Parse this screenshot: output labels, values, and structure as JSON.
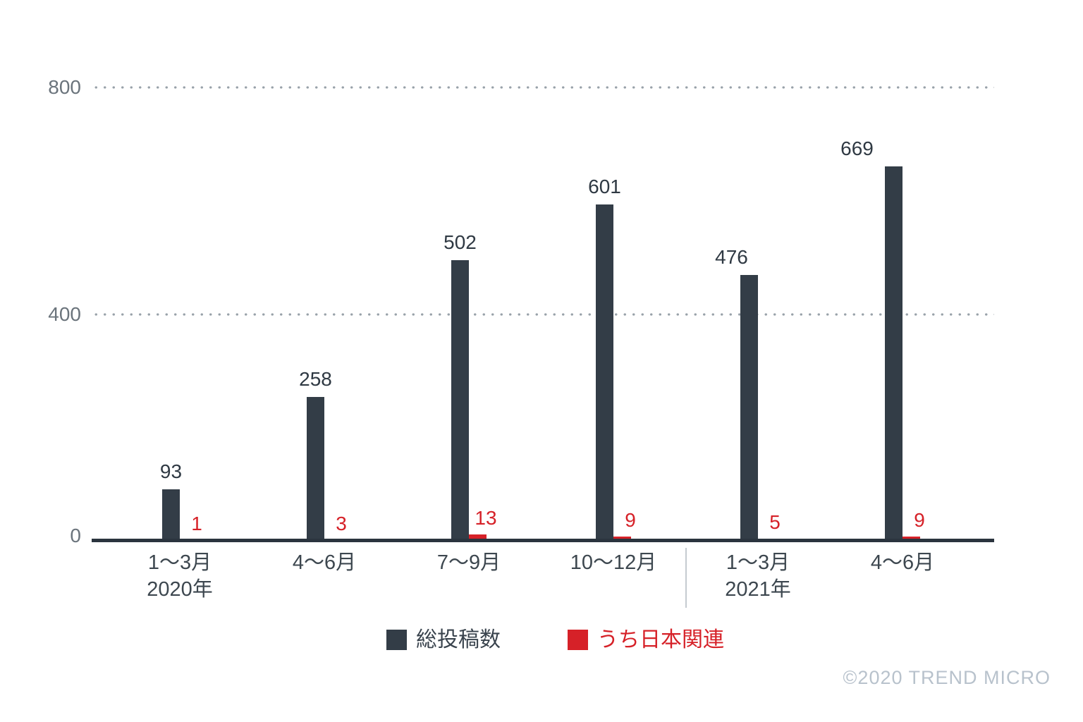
{
  "chart_data": {
    "type": "bar",
    "title": "",
    "categories": [
      "1〜3月",
      "4〜6月",
      "7〜9月",
      "10〜12月",
      "1〜3月",
      "4〜6月"
    ],
    "year_labels": [
      {
        "category_index": 0,
        "label": "2020年"
      },
      {
        "category_index": 4,
        "label": "2021年"
      }
    ],
    "series": [
      {
        "name": "総投稿数",
        "color": "#333d47",
        "values": [
          93,
          258,
          502,
          601,
          476,
          669
        ]
      },
      {
        "name": "うち日本関連",
        "color": "#d62128",
        "values": [
          1,
          3,
          13,
          9,
          5,
          9
        ]
      }
    ],
    "ylim": [
      0,
      800
    ],
    "yticks": [
      0,
      400,
      800
    ],
    "xlabel": "",
    "ylabel": "",
    "grid": "horizontal-dotted",
    "legend_position": "bottom",
    "year_divider_between": [
      3,
      4
    ]
  },
  "footer": {
    "copyright": "©2020 TREND MICRO"
  },
  "colors": {
    "background": "#ffffff",
    "bar_total": "#333d47",
    "bar_japan": "#d62128",
    "total_value_label": "#2f3943",
    "japan_value_label": "#d62128",
    "y_axis_label": "#6b747c",
    "category_label": "#3d474f",
    "grid_dot": "#98a1a9",
    "axis_line": "#2b343e",
    "year_divider": "#c5cbd0",
    "legend_total_text": "#39434d",
    "legend_japan_text": "#d62128",
    "copyright_text": "#b8c2cc"
  }
}
